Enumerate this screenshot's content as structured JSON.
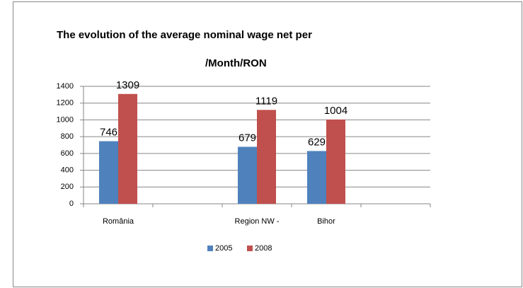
{
  "chart_data": {
    "type": "bar",
    "title": "The evolution of the average nominal wage net per",
    "subtitle": "/Month/RON",
    "categories": [
      "România",
      null,
      "Region NW -",
      "Bihor",
      null
    ],
    "series": [
      {
        "name": "2005",
        "color": "#4f81bd",
        "values": [
          746,
          null,
          679,
          629,
          null
        ]
      },
      {
        "name": "2008",
        "color": "#c0504d",
        "values": [
          1309,
          null,
          1119,
          1004,
          null
        ]
      }
    ],
    "ylim": [
      0,
      1400
    ],
    "yticks": [
      0,
      200,
      400,
      600,
      800,
      1000,
      1200,
      1400
    ],
    "grid": true,
    "legend": "bottom"
  }
}
